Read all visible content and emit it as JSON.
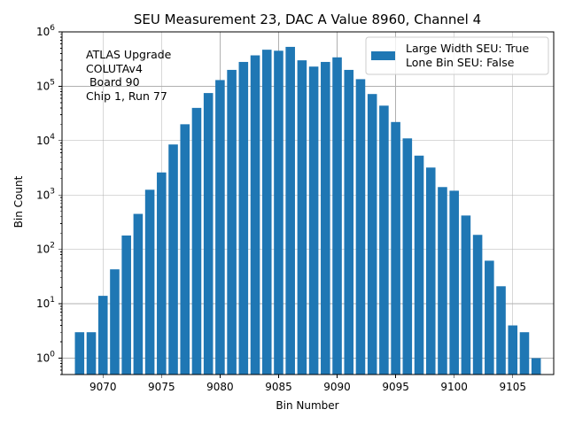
{
  "chart_data": {
    "type": "bar",
    "title": "SEU Measurement 23, DAC A Value 8960, Channel 4",
    "xlabel": "Bin Number",
    "ylabel": "Bin Count",
    "yscale": "log",
    "xlim": [
      9066.5,
      9108.5
    ],
    "ylim": [
      0.5,
      1000000
    ],
    "grid": true,
    "bar_color": "#1f77b4",
    "bar_width": 0.8,
    "x_ticks": [
      "9070",
      "9075",
      "9080",
      "9085",
      "9090",
      "9095",
      "9100",
      "9105"
    ],
    "y_ticks": [
      {
        "value": 1,
        "base": "10",
        "exp": "0"
      },
      {
        "value": 10,
        "base": "10",
        "exp": "1"
      },
      {
        "value": 100,
        "base": "10",
        "exp": "2"
      },
      {
        "value": 1000,
        "base": "10",
        "exp": "3"
      },
      {
        "value": 10000,
        "base": "10",
        "exp": "4"
      },
      {
        "value": 100000,
        "base": "10",
        "exp": "5"
      },
      {
        "value": 1000000,
        "base": "10",
        "exp": "6"
      }
    ],
    "legend": {
      "location": "top-right",
      "lines": [
        "Large Width SEU: True",
        "Lone Bin SEU: False"
      ]
    },
    "annotation": {
      "location": "top-left",
      "lines": [
        "ATLAS Upgrade",
        "COLUTAv4",
        " Board 90",
        "Chip 1, Run 77"
      ]
    },
    "x": [
      9068,
      9069,
      9070,
      9071,
      9072,
      9073,
      9074,
      9075,
      9076,
      9077,
      9078,
      9079,
      9080,
      9081,
      9082,
      9083,
      9084,
      9085,
      9086,
      9087,
      9088,
      9089,
      9090,
      9091,
      9092,
      9093,
      9094,
      9095,
      9096,
      9097,
      9098,
      9099,
      9100,
      9101,
      9102,
      9103,
      9104,
      9105,
      9106,
      9107
    ],
    "values": [
      3,
      3,
      14,
      43,
      180,
      450,
      1250,
      2600,
      8500,
      20000,
      40000,
      75000,
      130000,
      200000,
      280000,
      370000,
      470000,
      450000,
      530000,
      300000,
      230000,
      280000,
      340000,
      200000,
      135000,
      72000,
      44000,
      22000,
      11000,
      5300,
      3200,
      1400,
      1200,
      420,
      185,
      62,
      21,
      4,
      3,
      1
    ]
  }
}
